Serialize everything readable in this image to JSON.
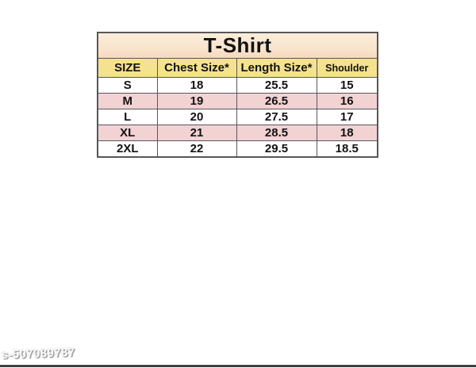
{
  "chart_data": {
    "type": "table",
    "title": "T-Shirt",
    "columns": [
      "SIZE",
      "Chest Size*",
      "Length Size*",
      "Shoulder"
    ],
    "rows": [
      [
        "S",
        "18",
        "25.5",
        "15"
      ],
      [
        "M",
        "19",
        "26.5",
        "16"
      ],
      [
        "L",
        "20",
        "27.5",
        "17"
      ],
      [
        "XL",
        "21",
        "28.5",
        "18"
      ],
      [
        "2XL",
        "22",
        "29.5",
        "18.5"
      ]
    ]
  },
  "watermark": {
    "text": "s-507089787"
  },
  "colors": {
    "title_bg_top": "#FBEEDA",
    "title_bg_bottom": "#F6D9C0",
    "header_bg": "#F5E28E",
    "row_stripe_pink": "#F3D2D4",
    "row_white": "#FFFFFF",
    "table_border": "#57575A",
    "text": "#121212",
    "bottom_rule": "#3E3E40",
    "watermark_shadow": "#8F8F8F"
  }
}
